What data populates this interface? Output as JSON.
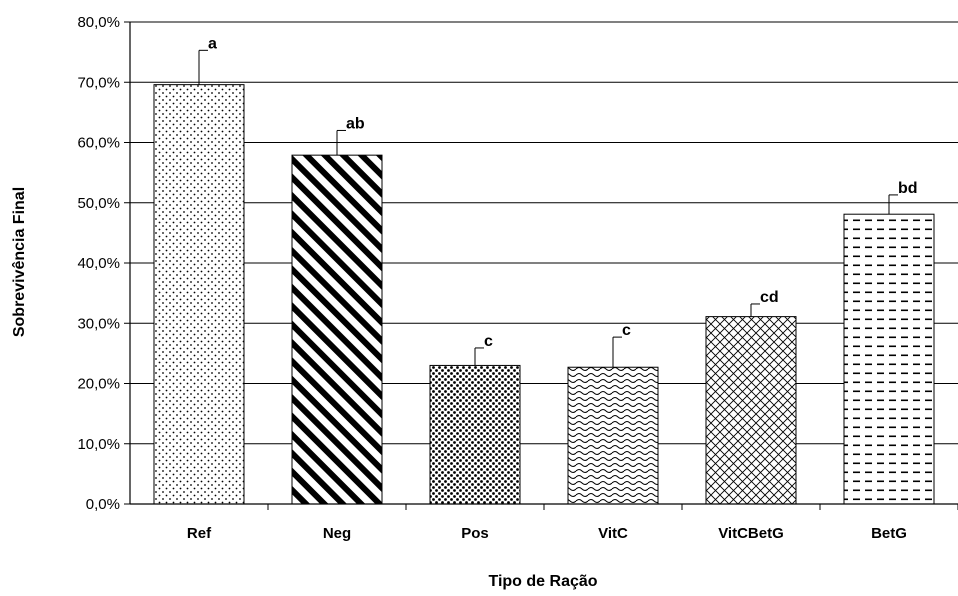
{
  "chart_data": {
    "type": "bar",
    "title": "",
    "xlabel": "Tipo de Ração",
    "ylabel": "Sobrevivência Final",
    "ylim": [
      0,
      80
    ],
    "ytick_step": 10,
    "ytick_labels": [
      "0,0%",
      "10,0%",
      "20,0%",
      "30,0%",
      "40,0%",
      "50,0%",
      "60,0%",
      "70,0%",
      "80,0%"
    ],
    "grid": true,
    "legend": false,
    "categories": [
      "Ref",
      "Neg",
      "Pos",
      "VitC",
      "VitCBetG",
      "BetG"
    ],
    "values": [
      69.6,
      57.9,
      23.0,
      22.7,
      31.1,
      48.1
    ],
    "error_upper": [
      5.7,
      4.1,
      2.9,
      5.0,
      2.1,
      3.2
    ],
    "significance_labels": [
      "a",
      "ab",
      "c",
      "c",
      "cd",
      "bd"
    ],
    "fill_patterns": [
      "dots-sparse",
      "diagonal-stripes",
      "dots-dense",
      "waves",
      "crosshatch",
      "dashes"
    ],
    "colors": {
      "bar_outline": "#000000",
      "bar_fill": "#ffffff",
      "grid": "#000000"
    }
  }
}
